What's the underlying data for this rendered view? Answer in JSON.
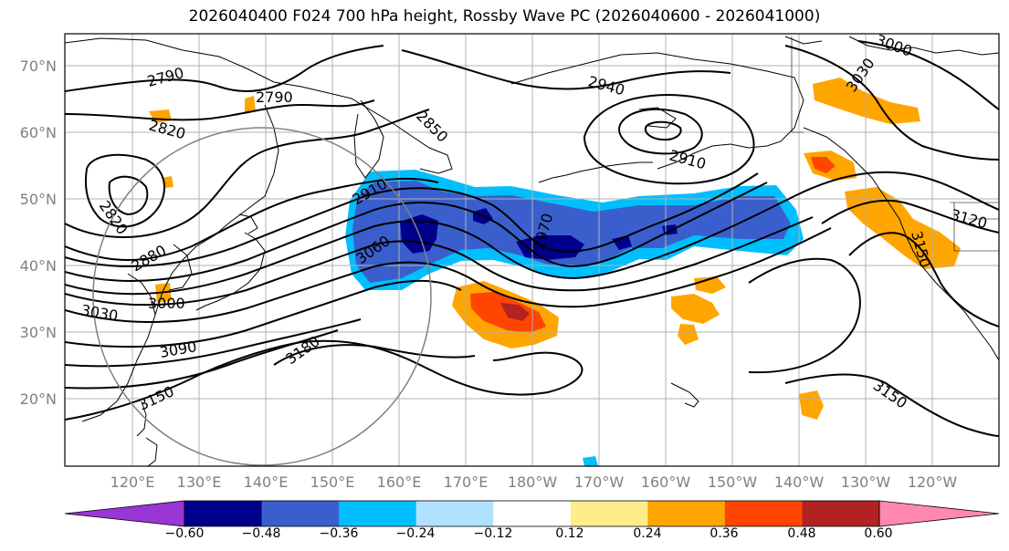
{
  "title": "2026040400 F024 700 hPa height, Rossby Wave PC (2026040600 - 2026041000)",
  "lat_labels": [
    "70°N",
    "60°N",
    "50°N",
    "40°N",
    "30°N",
    "20°N"
  ],
  "lon_labels": [
    "120°E",
    "130°E",
    "140°E",
    "150°E",
    "160°E",
    "170°E",
    "180°W",
    "170°W",
    "160°W",
    "150°W",
    "140°W",
    "130°W",
    "120°W"
  ],
  "contour_labels": [
    "2790",
    "2790",
    "2820",
    "2820",
    "2850",
    "2880",
    "2910",
    "2910",
    "2940",
    "2970",
    "3000",
    "3000",
    "3030",
    "3030",
    "3060",
    "3090",
    "3120",
    "3150",
    "3150",
    "3150",
    "3180"
  ],
  "colorbar": {
    "ticks": [
      "−0.60",
      "−0.48",
      "−0.36",
      "−0.24",
      "−0.12",
      "0.12",
      "0.24",
      "0.36",
      "0.48",
      "0.60"
    ],
    "colors": [
      "#9b36d6",
      "#00008b",
      "#3a5fcd",
      "#00bfff",
      "#b0e2ff",
      "#ffffff",
      "#ffec8b",
      "#ffa500",
      "#ff4500",
      "#b22222",
      "#ff88b0"
    ]
  },
  "colors": {
    "neg_light": "#00bfff",
    "neg_mid": "#3a5fcd",
    "neg_dark": "#00008b",
    "pos_light": "#ffec8b",
    "pos_mid": "#ffa500",
    "pos_strong": "#ff4500",
    "pos_dark": "#b22222"
  }
}
